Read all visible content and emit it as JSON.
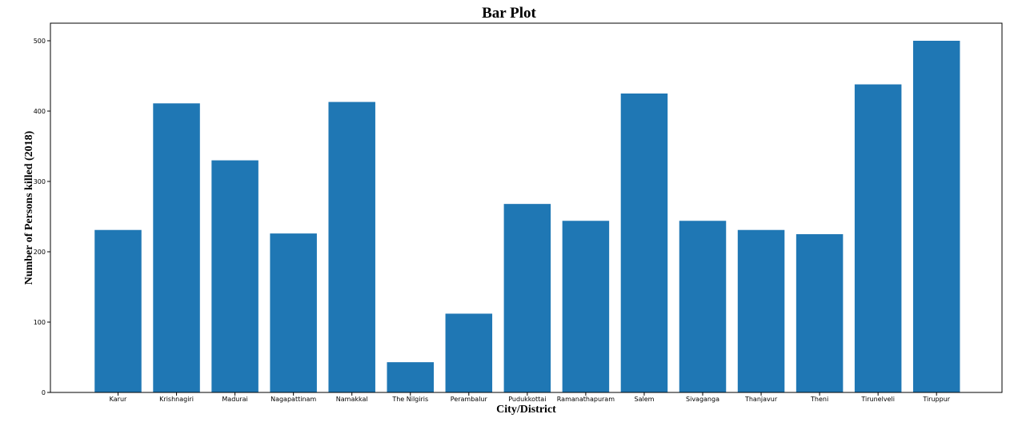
{
  "chart_data": {
    "type": "bar",
    "title": "Bar Plot",
    "xlabel": "City/District",
    "ylabel": "Number of Persons killed (2018)",
    "categories": [
      "Karur",
      "Krishnagiri",
      "Madurai",
      "Nagapattinam",
      "Namakkal",
      "The Nilgiris",
      "Perambalur",
      "Pudukkottai",
      "Ramanathapuram",
      "Salem",
      "Sivaganga",
      "Thanjavur",
      "Theni",
      "Tirunelveli",
      "Tiruppur"
    ],
    "values": [
      231,
      411,
      330,
      226,
      413,
      43,
      112,
      268,
      244,
      425,
      244,
      231,
      225,
      438,
      500
    ],
    "yticks": [
      0,
      100,
      200,
      300,
      400,
      500
    ],
    "ylim": [
      0,
      525
    ],
    "grid": false,
    "colors": {
      "bar": "#1f77b4",
      "axis": "#000000"
    }
  }
}
